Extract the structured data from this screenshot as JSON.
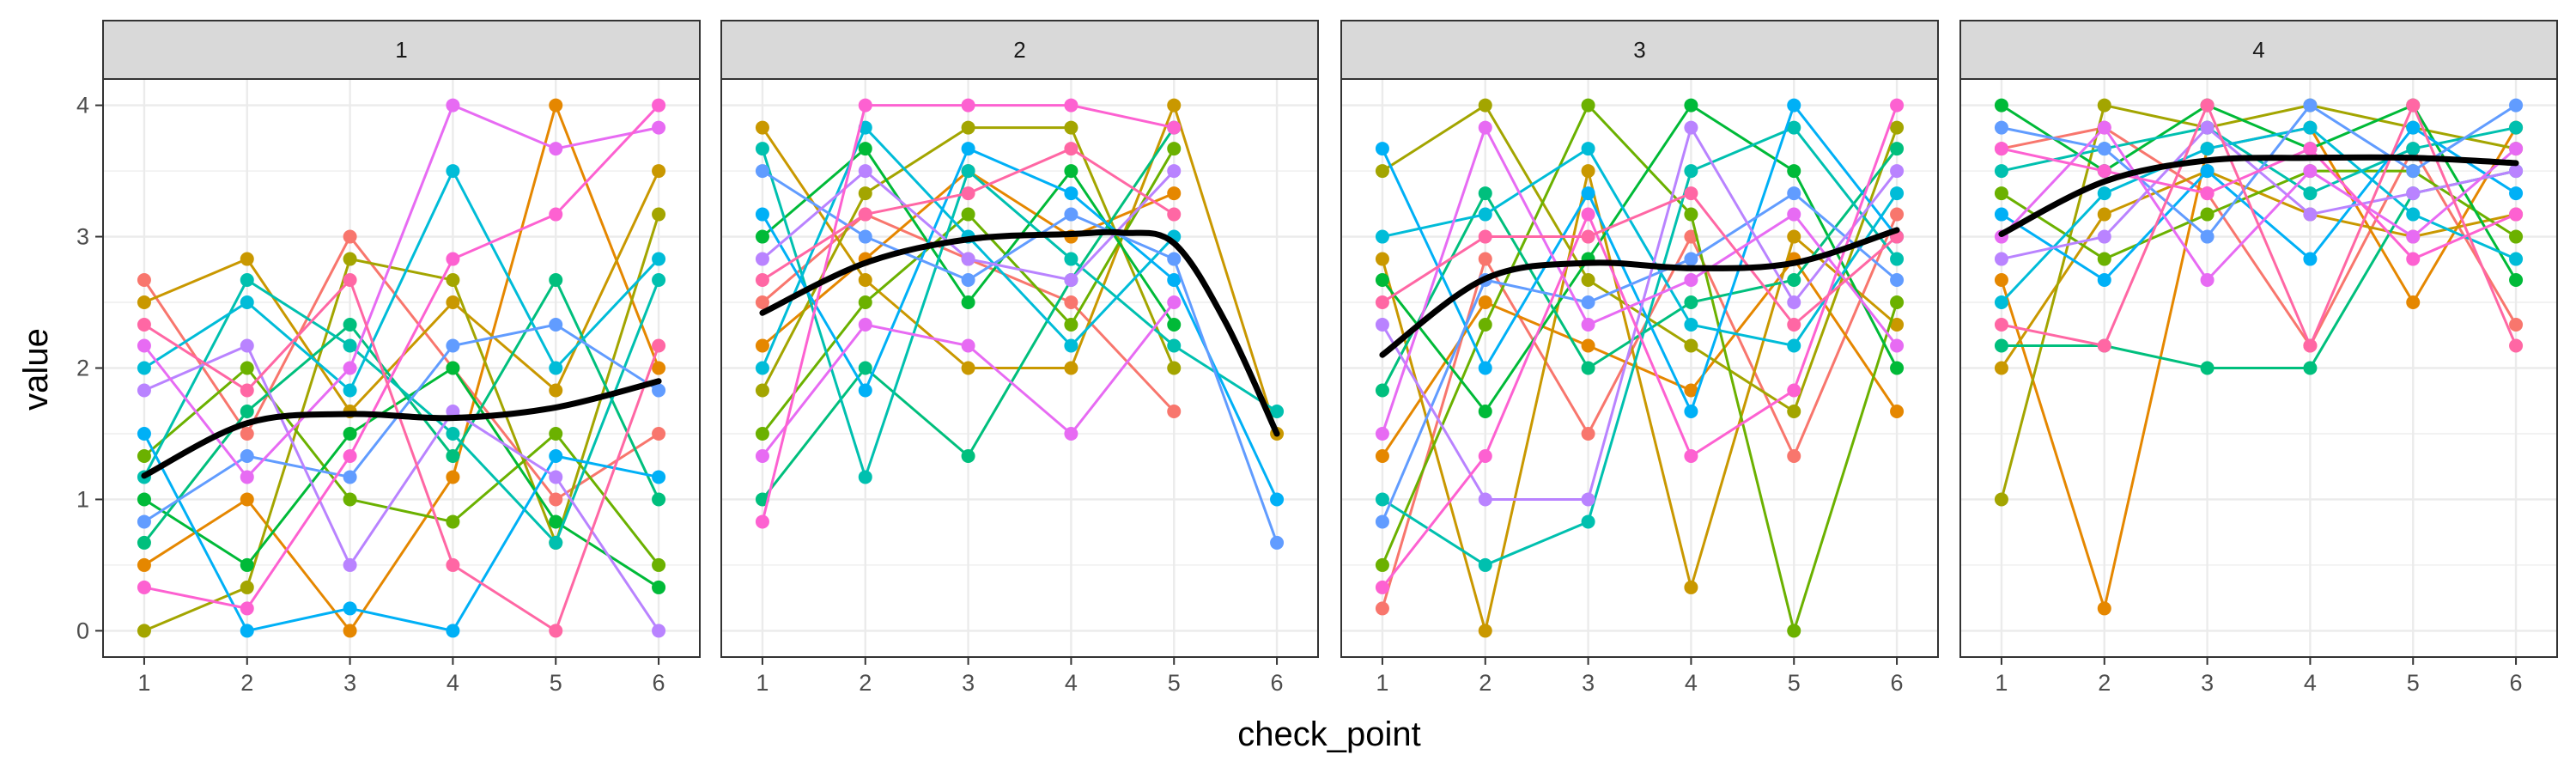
{
  "chart_data": {
    "type": "line",
    "facet_variable": "group",
    "xlabel": "check_point",
    "ylabel": "value",
    "x_ticks": [
      1,
      2,
      3,
      4,
      5,
      6
    ],
    "y_ticks": [
      0,
      1,
      2,
      3,
      4
    ],
    "ylim": [
      -0.2,
      4.2
    ],
    "xlim": [
      0.6,
      6.4
    ],
    "smooth_color": "#000000",
    "panel_background": "#ffffff",
    "strip_fill": "#d9d9d9",
    "grid_color": "#ebebeb",
    "palette": [
      "#F8766D",
      "#E58700",
      "#C99800",
      "#A3A500",
      "#6BB100",
      "#00BA38",
      "#00BF7D",
      "#00C0AF",
      "#00BCD8",
      "#00B0F6",
      "#619CFF",
      "#B983FF",
      "#E76BF3",
      "#FD61D1",
      "#FF67A4"
    ],
    "panels": [
      {
        "label": "1",
        "smooth": {
          "x": [
            1,
            2,
            3,
            4,
            5,
            6
          ],
          "y": [
            1.18,
            1.58,
            1.65,
            1.62,
            1.7,
            1.9
          ]
        },
        "series": [
          {
            "color": "#F8766D",
            "y": [
              2.67,
              1.5,
              3.0,
              2.0,
              1.0,
              1.5
            ]
          },
          {
            "color": "#E58700",
            "y": [
              0.5,
              1.0,
              0.0,
              1.17,
              4.0,
              2.0
            ]
          },
          {
            "color": "#C99800",
            "y": [
              2.5,
              2.83,
              1.67,
              2.5,
              1.83,
              3.5
            ]
          },
          {
            "color": "#A3A500",
            "y": [
              0.0,
              0.33,
              2.83,
              2.67,
              0.67,
              3.17
            ]
          },
          {
            "color": "#6BB100",
            "y": [
              1.33,
              2.0,
              1.0,
              0.83,
              1.5,
              0.5
            ]
          },
          {
            "color": "#00BA38",
            "y": [
              1.0,
              0.5,
              1.5,
              2.0,
              0.83,
              0.33
            ]
          },
          {
            "color": "#00BF7D",
            "y": [
              0.67,
              1.67,
              2.33,
              1.33,
              2.67,
              1.0
            ]
          },
          {
            "color": "#00C0AF",
            "y": [
              1.17,
              2.67,
              2.17,
              1.5,
              0.67,
              2.67
            ]
          },
          {
            "color": "#00BCD8",
            "y": [
              2.0,
              2.5,
              1.83,
              3.5,
              2.0,
              2.83
            ]
          },
          {
            "color": "#00B0F6",
            "y": [
              1.5,
              0.0,
              0.17,
              0.0,
              1.33,
              1.17
            ]
          },
          {
            "color": "#619CFF",
            "y": [
              0.83,
              1.33,
              1.17,
              2.17,
              2.33,
              1.83
            ]
          },
          {
            "color": "#B983FF",
            "y": [
              1.83,
              2.17,
              0.5,
              1.67,
              1.17,
              0.0
            ]
          },
          {
            "color": "#E76BF3",
            "y": [
              2.17,
              1.17,
              2.0,
              4.0,
              3.67,
              3.83
            ]
          },
          {
            "color": "#FD61D1",
            "y": [
              0.33,
              0.17,
              1.33,
              2.83,
              3.17,
              4.0
            ]
          },
          {
            "color": "#FF67A4",
            "y": [
              2.33,
              1.83,
              2.67,
              0.5,
              0.0,
              2.17
            ]
          }
        ]
      },
      {
        "label": "2",
        "smooth": {
          "x": [
            1,
            2,
            3,
            4,
            4.5,
            5,
            5.5,
            6
          ],
          "y": [
            2.42,
            2.8,
            2.98,
            3.02,
            3.03,
            2.95,
            2.35,
            1.5
          ]
        },
        "series": [
          {
            "color": "#F8766D",
            "y": [
              2.5,
              3.17,
              2.83,
              2.5,
              1.67
            ]
          },
          {
            "color": "#E58700",
            "y": [
              2.17,
              2.83,
              3.5,
              3.0,
              3.33
            ]
          },
          {
            "color": "#C99800",
            "y": [
              3.83,
              2.67,
              2.0,
              2.0,
              4.0,
              1.5
            ]
          },
          {
            "color": "#A3A500",
            "y": [
              1.83,
              3.33,
              3.83,
              3.83,
              2.0
            ]
          },
          {
            "color": "#6BB100",
            "y": [
              1.5,
              2.5,
              3.17,
              2.33,
              3.67
            ]
          },
          {
            "color": "#00BA38",
            "y": [
              3.0,
              3.67,
              2.5,
              3.5,
              2.33
            ]
          },
          {
            "color": "#00BF7D",
            "y": [
              1.0,
              2.0,
              1.33,
              2.67,
              3.83
            ]
          },
          {
            "color": "#00C0AF",
            "y": [
              3.67,
              1.17,
              3.5,
              2.83,
              2.17,
              1.67
            ]
          },
          {
            "color": "#00BCD8",
            "y": [
              2.0,
              3.83,
              3.0,
              2.17,
              3.0
            ]
          },
          {
            "color": "#00B0F6",
            "y": [
              3.17,
              1.83,
              3.67,
              3.33,
              2.67,
              1.0
            ]
          },
          {
            "color": "#619CFF",
            "y": [
              3.5,
              3.0,
              2.67,
              3.17,
              2.83,
              0.67
            ]
          },
          {
            "color": "#B983FF",
            "y": [
              2.83,
              3.5,
              2.83,
              2.67,
              3.5
            ]
          },
          {
            "color": "#E76BF3",
            "y": [
              1.33,
              2.33,
              2.17,
              1.5,
              2.5
            ]
          },
          {
            "color": "#FD61D1",
            "y": [
              0.83,
              4.0,
              4.0,
              4.0,
              3.83
            ]
          },
          {
            "color": "#FF67A4",
            "y": [
              2.67,
              3.17,
              3.33,
              3.67,
              3.17
            ]
          }
        ]
      },
      {
        "label": "3",
        "smooth": {
          "x": [
            1,
            2,
            3,
            4,
            5,
            6
          ],
          "y": [
            2.1,
            2.68,
            2.8,
            2.76,
            2.8,
            3.05
          ]
        },
        "series": [
          {
            "color": "#F8766D",
            "y": [
              0.17,
              2.83,
              1.5,
              3.0,
              1.33,
              3.17
            ]
          },
          {
            "color": "#E58700",
            "y": [
              1.33,
              2.5,
              2.17,
              1.83,
              2.83,
              1.67
            ]
          },
          {
            "color": "#C99800",
            "y": [
              2.83,
              0.0,
              3.5,
              0.33,
              3.0,
              2.33
            ]
          },
          {
            "color": "#A3A500",
            "y": [
              3.5,
              4.0,
              2.67,
              2.17,
              1.67,
              3.83
            ]
          },
          {
            "color": "#6BB100",
            "y": [
              0.5,
              2.33,
              4.0,
              3.17,
              0.0,
              2.5
            ]
          },
          {
            "color": "#00BA38",
            "y": [
              2.67,
              1.67,
              2.83,
              4.0,
              3.5,
              2.0
            ]
          },
          {
            "color": "#00BF7D",
            "y": [
              1.83,
              3.33,
              2.0,
              2.5,
              2.67,
              3.67
            ]
          },
          {
            "color": "#00C0AF",
            "y": [
              1.0,
              0.5,
              0.83,
              3.5,
              3.83,
              2.83
            ]
          },
          {
            "color": "#00BCD8",
            "y": [
              3.0,
              3.17,
              3.67,
              2.33,
              2.17,
              3.33
            ]
          },
          {
            "color": "#00B0F6",
            "y": [
              3.67,
              2.0,
              3.33,
              1.67,
              4.0,
              3.0
            ]
          },
          {
            "color": "#619CFF",
            "y": [
              0.83,
              2.67,
              2.5,
              2.83,
              3.33,
              2.67
            ]
          },
          {
            "color": "#B983FF",
            "y": [
              2.33,
              1.0,
              1.0,
              3.83,
              2.5,
              3.5
            ]
          },
          {
            "color": "#E76BF3",
            "y": [
              1.5,
              3.83,
              2.33,
              2.67,
              3.17,
              2.17
            ]
          },
          {
            "color": "#FD61D1",
            "y": [
              0.33,
              1.33,
              3.17,
              1.33,
              1.83,
              4.0
            ]
          },
          {
            "color": "#FF67A4",
            "y": [
              2.5,
              3.0,
              3.0,
              3.33,
              2.33,
              3.0
            ]
          }
        ]
      },
      {
        "label": "4",
        "smooth": {
          "x": [
            1,
            2,
            3,
            4,
            5,
            6
          ],
          "y": [
            3.02,
            3.42,
            3.58,
            3.6,
            3.6,
            3.56
          ]
        },
        "series": [
          {
            "color": "#F8766D",
            "y": [
              3.67,
              3.83,
              3.33,
              2.17,
              3.67,
              2.33
            ]
          },
          {
            "color": "#E58700",
            "y": [
              2.67,
              0.17,
              3.67,
              3.83,
              2.5,
              3.83
            ]
          },
          {
            "color": "#C99800",
            "y": [
              2.0,
              3.17,
              3.5,
              3.17,
              3.0,
              3.17
            ]
          },
          {
            "color": "#A3A500",
            "y": [
              1.0,
              4.0,
              3.83,
              4.0,
              3.83,
              3.67
            ]
          },
          {
            "color": "#6BB100",
            "y": [
              3.33,
              2.83,
              3.17,
              3.5,
              3.5,
              3.0
            ]
          },
          {
            "color": "#00BA38",
            "y": [
              4.0,
              3.5,
              4.0,
              3.67,
              4.0,
              2.67
            ]
          },
          {
            "color": "#00BF7D",
            "y": [
              2.17,
              2.17,
              2.0,
              2.0,
              3.33,
              3.5
            ]
          },
          {
            "color": "#00C0AF",
            "y": [
              3.5,
              3.67,
              3.83,
              3.33,
              3.67,
              3.83
            ]
          },
          {
            "color": "#00BCD8",
            "y": [
              2.5,
              3.33,
              3.67,
              3.83,
              3.17,
              2.83
            ]
          },
          {
            "color": "#00B0F6",
            "y": [
              3.17,
              2.67,
              3.5,
              2.83,
              3.83,
              3.33
            ]
          },
          {
            "color": "#619CFF",
            "y": [
              3.83,
              3.67,
              3.0,
              4.0,
              3.5,
              4.0
            ]
          },
          {
            "color": "#B983FF",
            "y": [
              2.83,
              3.0,
              3.83,
              3.17,
              3.33,
              3.5
            ]
          },
          {
            "color": "#E76BF3",
            "y": [
              3.0,
              3.83,
              2.67,
              3.5,
              3.0,
              3.67
            ]
          },
          {
            "color": "#FD61D1",
            "y": [
              3.67,
              3.5,
              3.33,
              3.67,
              2.83,
              3.17
            ]
          },
          {
            "color": "#FF67A4",
            "y": [
              2.33,
              2.17,
              4.0,
              2.17,
              4.0,
              2.17
            ]
          }
        ]
      }
    ]
  }
}
